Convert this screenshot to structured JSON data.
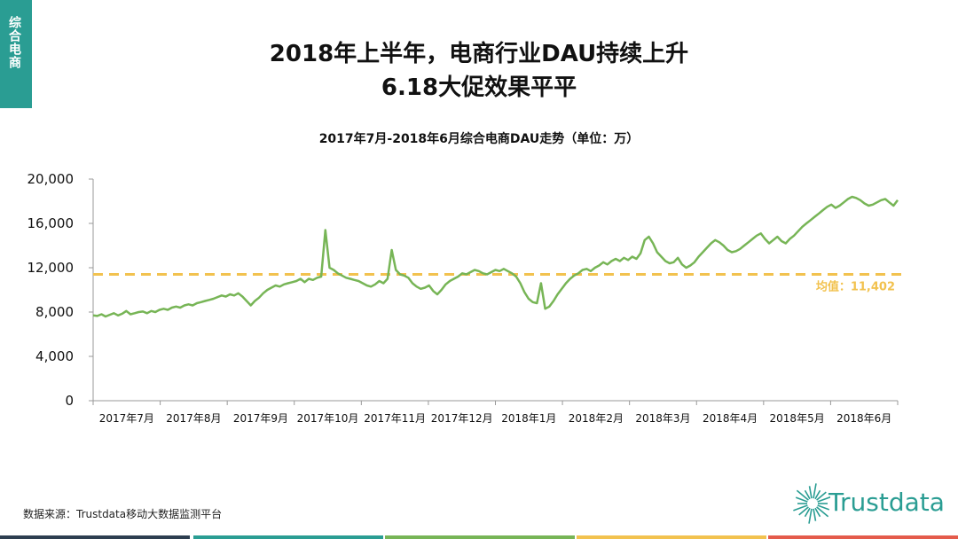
{
  "tag": {
    "text": "综合电商"
  },
  "title": {
    "line1": "2018年上半年，电商行业DAU持续上升",
    "line2": "6.18大促效果平平"
  },
  "colors": {
    "tag": "#2a9d93",
    "line": "#77b556",
    "avg": "#f2c24f",
    "axis": "#999999",
    "logo": "#2a9d93",
    "bars": [
      "#2d3e50",
      "#2a9d93",
      "#77b556",
      "#f2c24f",
      "#e45b4b"
    ]
  },
  "source": "数据来源：Trustdata移动大数据监测平台",
  "logo": {
    "icon": "starburst-icon",
    "text": "Trustdata"
  },
  "chart_data": {
    "type": "line",
    "title": "2017年7月-2018年6月综合电商DAU走势（单位：万）",
    "ylim": [
      0,
      20000
    ],
    "yticks": [
      "0",
      "4,000",
      "8,000",
      "12,000",
      "16,000",
      "20,000"
    ],
    "x_tick_labels": [
      "2017年7月",
      "2017年8月",
      "2017年9月",
      "2017年10月",
      "2017年11月",
      "2017年12月",
      "2018年1月",
      "2018年2月",
      "2018年3月",
      "2018年4月",
      "2018年5月",
      "2018年6月"
    ],
    "grid": false,
    "average": {
      "label": "均值：11,402",
      "value": 11402
    },
    "series": [
      {
        "values": [
          7700,
          7650,
          7800,
          7600,
          7750,
          7900,
          7700,
          7850,
          8100,
          7800,
          7900,
          8000,
          8050,
          7900,
          8100,
          8000,
          8200,
          8300,
          8200,
          8400,
          8500,
          8400,
          8600,
          8700,
          8600,
          8800,
          8900,
          9000,
          9100,
          9200,
          9350,
          9500,
          9400,
          9600,
          9500,
          9700,
          9400,
          9000,
          8600,
          9000,
          9300,
          9700,
          10000,
          10200,
          10400,
          10300,
          10500,
          10600,
          10700,
          10800,
          11000,
          10700,
          11000,
          10900,
          11100,
          11200,
          15400,
          12000,
          11800,
          11500,
          11300,
          11100,
          11000,
          10900,
          10800,
          10600,
          10400,
          10300,
          10500,
          10800,
          10600,
          11000,
          13600,
          11800,
          11400,
          11300,
          11100,
          10600,
          10300,
          10100,
          10200,
          10400,
          9900,
          9600,
          10000,
          10500,
          10800,
          11000,
          11200,
          11500,
          11400,
          11600,
          11800,
          11700,
          11500,
          11400,
          11600,
          11800,
          11700,
          11900,
          11700,
          11500,
          11200,
          10600,
          9800,
          9200,
          8900,
          8800,
          10600,
          8300,
          8500,
          9000,
          9600,
          10100,
          10600,
          11000,
          11300,
          11500,
          11800,
          11900,
          11700,
          12000,
          12200,
          12500,
          12300,
          12600,
          12800,
          12600,
          12900,
          12700,
          13000,
          12800,
          13300,
          14500,
          14800,
          14200,
          13400,
          13000,
          12600,
          12400,
          12500,
          12900,
          12300,
          12000,
          12200,
          12500,
          13000,
          13400,
          13800,
          14200,
          14500,
          14300,
          14000,
          13600,
          13400,
          13500,
          13700,
          14000,
          14300,
          14600,
          14900,
          15100,
          14600,
          14200,
          14500,
          14800,
          14400,
          14200,
          14600,
          14900,
          15300,
          15700,
          16000,
          16300,
          16600,
          16900,
          17200,
          17500,
          17700,
          17400,
          17600,
          17900,
          18200,
          18400,
          18300,
          18100,
          17800,
          17600,
          17700,
          17900,
          18100,
          18200,
          17900,
          17600,
          18100
        ]
      }
    ]
  }
}
